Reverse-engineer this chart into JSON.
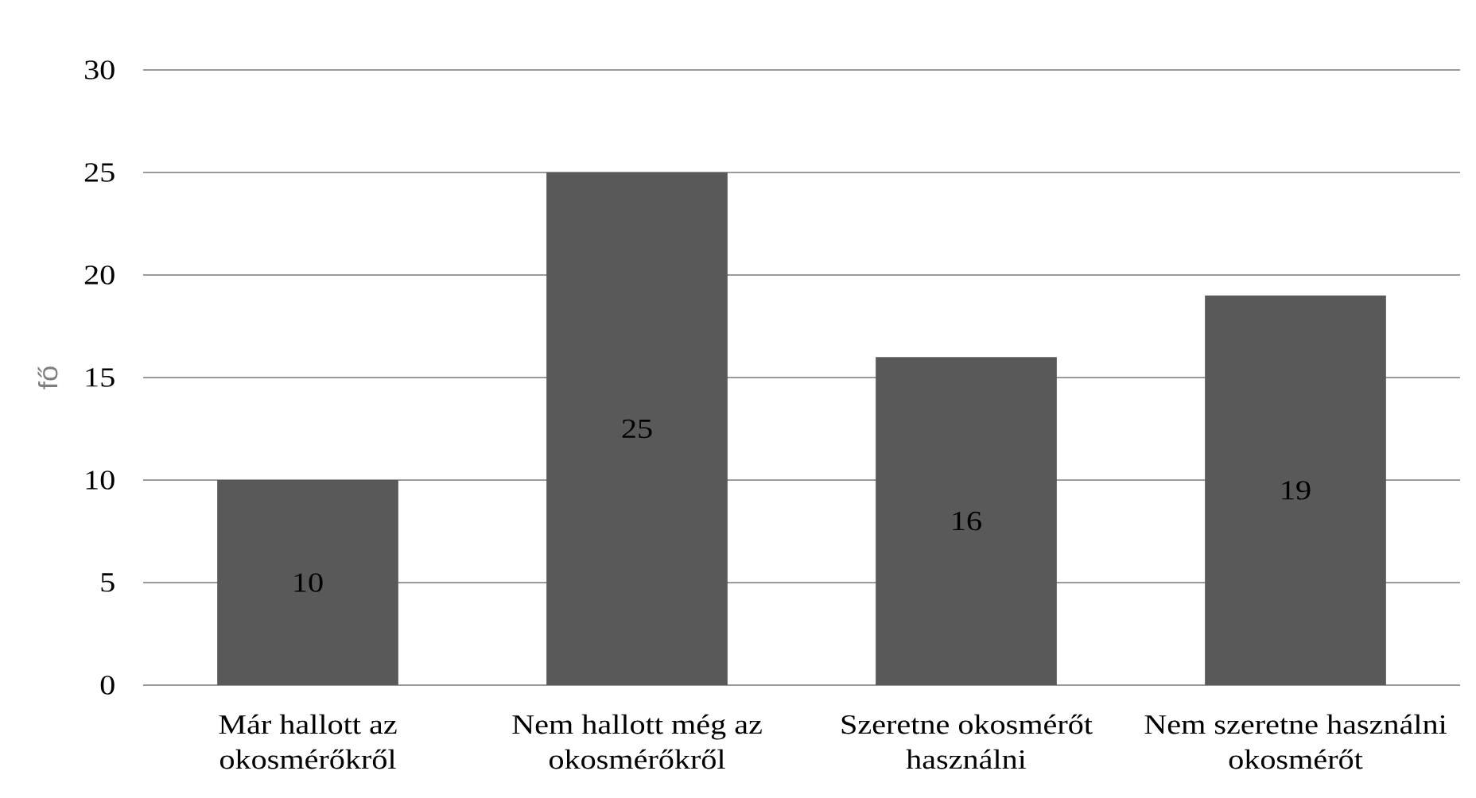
{
  "chart_data": {
    "type": "bar",
    "ylabel": "fő",
    "categories": [
      "Már hallott az okosmérőkről",
      "Nem hallott még az okosmérőkről",
      "Szeretne okosmérőt használni",
      "Nem szeretne használni okosmérőt"
    ],
    "values": [
      10,
      25,
      16,
      19
    ],
    "color": "#595959",
    "ylim": [
      0,
      30
    ],
    "yticks": [
      0,
      5,
      10,
      15,
      20,
      25,
      30
    ],
    "grid": "y",
    "data_labels": true
  }
}
